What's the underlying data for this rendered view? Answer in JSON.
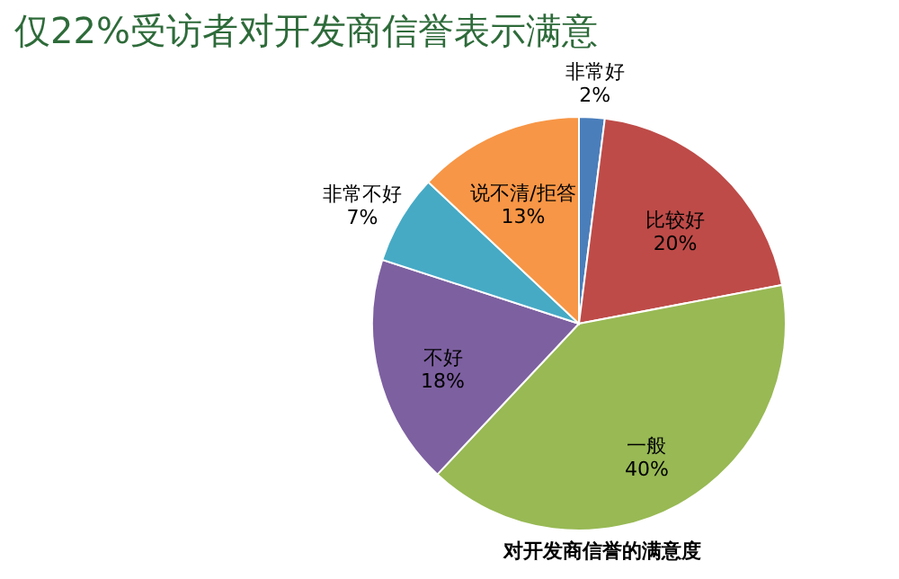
{
  "chart_data": {
    "type": "pie",
    "title": "仅22%受访者对开发商信誉表示满意",
    "categories": [
      "非常好",
      "比较好",
      "一般",
      "不好",
      "非常不好",
      "说不清/拒答"
    ],
    "values": [
      2,
      20,
      40,
      18,
      7,
      13
    ],
    "value_labels": [
      "2%",
      "20%",
      "40%",
      "18%",
      "7%",
      "13%"
    ],
    "colors": [
      "#4a7ebb",
      "#be4b48",
      "#98b954",
      "#7d60a0",
      "#46aac5",
      "#f79646"
    ],
    "annotations": [
      "对开发商信誉的满意度"
    ]
  }
}
